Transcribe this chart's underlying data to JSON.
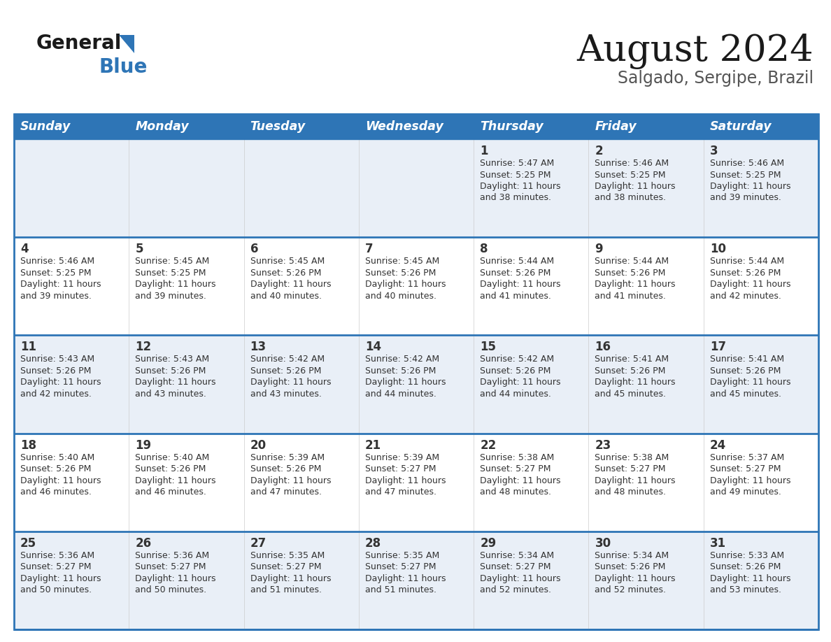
{
  "title": "August 2024",
  "subtitle": "Salgado, Sergipe, Brazil",
  "header_color": "#2e75b6",
  "header_text_color": "#ffffff",
  "row_bg_even": "#e9eff7",
  "row_bg_odd": "#ffffff",
  "border_color": "#2e75b6",
  "text_color": "#333333",
  "day_headers": [
    "Sunday",
    "Monday",
    "Tuesday",
    "Wednesday",
    "Thursday",
    "Friday",
    "Saturday"
  ],
  "days_data": [
    {
      "day": 1,
      "col": 4,
      "row": 0,
      "sunrise": "5:47 AM",
      "sunset": "5:25 PM",
      "daylight_min": "38"
    },
    {
      "day": 2,
      "col": 5,
      "row": 0,
      "sunrise": "5:46 AM",
      "sunset": "5:25 PM",
      "daylight_min": "38"
    },
    {
      "day": 3,
      "col": 6,
      "row": 0,
      "sunrise": "5:46 AM",
      "sunset": "5:25 PM",
      "daylight_min": "39"
    },
    {
      "day": 4,
      "col": 0,
      "row": 1,
      "sunrise": "5:46 AM",
      "sunset": "5:25 PM",
      "daylight_min": "39"
    },
    {
      "day": 5,
      "col": 1,
      "row": 1,
      "sunrise": "5:45 AM",
      "sunset": "5:25 PM",
      "daylight_min": "39"
    },
    {
      "day": 6,
      "col": 2,
      "row": 1,
      "sunrise": "5:45 AM",
      "sunset": "5:26 PM",
      "daylight_min": "40"
    },
    {
      "day": 7,
      "col": 3,
      "row": 1,
      "sunrise": "5:45 AM",
      "sunset": "5:26 PM",
      "daylight_min": "40"
    },
    {
      "day": 8,
      "col": 4,
      "row": 1,
      "sunrise": "5:44 AM",
      "sunset": "5:26 PM",
      "daylight_min": "41"
    },
    {
      "day": 9,
      "col": 5,
      "row": 1,
      "sunrise": "5:44 AM",
      "sunset": "5:26 PM",
      "daylight_min": "41"
    },
    {
      "day": 10,
      "col": 6,
      "row": 1,
      "sunrise": "5:44 AM",
      "sunset": "5:26 PM",
      "daylight_min": "42"
    },
    {
      "day": 11,
      "col": 0,
      "row": 2,
      "sunrise": "5:43 AM",
      "sunset": "5:26 PM",
      "daylight_min": "42"
    },
    {
      "day": 12,
      "col": 1,
      "row": 2,
      "sunrise": "5:43 AM",
      "sunset": "5:26 PM",
      "daylight_min": "43"
    },
    {
      "day": 13,
      "col": 2,
      "row": 2,
      "sunrise": "5:42 AM",
      "sunset": "5:26 PM",
      "daylight_min": "43"
    },
    {
      "day": 14,
      "col": 3,
      "row": 2,
      "sunrise": "5:42 AM",
      "sunset": "5:26 PM",
      "daylight_min": "44"
    },
    {
      "day": 15,
      "col": 4,
      "row": 2,
      "sunrise": "5:42 AM",
      "sunset": "5:26 PM",
      "daylight_min": "44"
    },
    {
      "day": 16,
      "col": 5,
      "row": 2,
      "sunrise": "5:41 AM",
      "sunset": "5:26 PM",
      "daylight_min": "45"
    },
    {
      "day": 17,
      "col": 6,
      "row": 2,
      "sunrise": "5:41 AM",
      "sunset": "5:26 PM",
      "daylight_min": "45"
    },
    {
      "day": 18,
      "col": 0,
      "row": 3,
      "sunrise": "5:40 AM",
      "sunset": "5:26 PM",
      "daylight_min": "46"
    },
    {
      "day": 19,
      "col": 1,
      "row": 3,
      "sunrise": "5:40 AM",
      "sunset": "5:26 PM",
      "daylight_min": "46"
    },
    {
      "day": 20,
      "col": 2,
      "row": 3,
      "sunrise": "5:39 AM",
      "sunset": "5:26 PM",
      "daylight_min": "47"
    },
    {
      "day": 21,
      "col": 3,
      "row": 3,
      "sunrise": "5:39 AM",
      "sunset": "5:27 PM",
      "daylight_min": "47"
    },
    {
      "day": 22,
      "col": 4,
      "row": 3,
      "sunrise": "5:38 AM",
      "sunset": "5:27 PM",
      "daylight_min": "48"
    },
    {
      "day": 23,
      "col": 5,
      "row": 3,
      "sunrise": "5:38 AM",
      "sunset": "5:27 PM",
      "daylight_min": "48"
    },
    {
      "day": 24,
      "col": 6,
      "row": 3,
      "sunrise": "5:37 AM",
      "sunset": "5:27 PM",
      "daylight_min": "49"
    },
    {
      "day": 25,
      "col": 0,
      "row": 4,
      "sunrise": "5:36 AM",
      "sunset": "5:27 PM",
      "daylight_min": "50"
    },
    {
      "day": 26,
      "col": 1,
      "row": 4,
      "sunrise": "5:36 AM",
      "sunset": "5:27 PM",
      "daylight_min": "50"
    },
    {
      "day": 27,
      "col": 2,
      "row": 4,
      "sunrise": "5:35 AM",
      "sunset": "5:27 PM",
      "daylight_min": "51"
    },
    {
      "day": 28,
      "col": 3,
      "row": 4,
      "sunrise": "5:35 AM",
      "sunset": "5:27 PM",
      "daylight_min": "51"
    },
    {
      "day": 29,
      "col": 4,
      "row": 4,
      "sunrise": "5:34 AM",
      "sunset": "5:27 PM",
      "daylight_min": "52"
    },
    {
      "day": 30,
      "col": 5,
      "row": 4,
      "sunrise": "5:34 AM",
      "sunset": "5:26 PM",
      "daylight_min": "52"
    },
    {
      "day": 31,
      "col": 6,
      "row": 4,
      "sunrise": "5:33 AM",
      "sunset": "5:26 PM",
      "daylight_min": "53"
    }
  ]
}
